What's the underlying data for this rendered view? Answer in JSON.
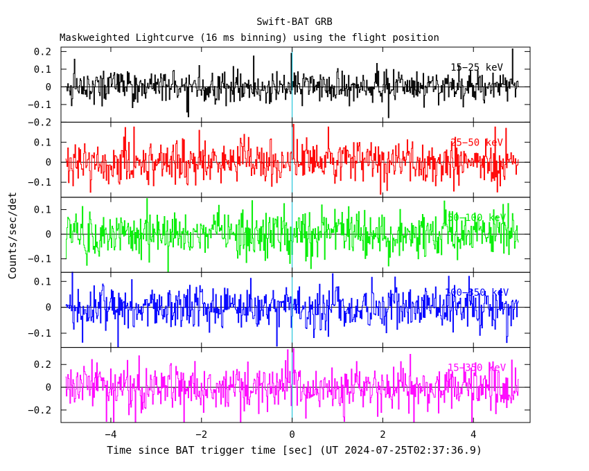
{
  "figure": {
    "title": "Swift-BAT GRB",
    "subtitle": "Maskweighted Lightcurve (16 ms binning) using the flight position",
    "ylabel": "Counts/sec/det",
    "xlabel": "Time since BAT trigger time [sec] (UT 2024-07-25T02:37:36.9)"
  },
  "chart_data": {
    "type": "line",
    "binning_seconds": 0.016,
    "x_range": [
      -5.1,
      5.25
    ],
    "x_ticks": [
      -4,
      -2,
      0,
      2,
      4
    ],
    "x_tick_labels": [
      "−4",
      "−2",
      "0",
      "2",
      "4"
    ],
    "data_x_range": [
      -5.0,
      5.0
    ],
    "trigger_marker_x": 0,
    "trigger_marker_color": "#00bcd4",
    "panels": [
      {
        "name": "15-25 keV",
        "label": "15−25 keV",
        "color": "#000000",
        "ylim": [
          -0.2,
          0.225
        ],
        "yticks": [
          -0.2,
          -0.1,
          0,
          0.1,
          0.2
        ],
        "ytick_labels": [
          "−0.2",
          "−0.1",
          "0",
          "0.1",
          "0.2"
        ],
        "noise_sigma": 0.045,
        "spikes": [
          {
            "t": -0.86,
            "v": 0.175
          },
          {
            "t": -0.02,
            "v": 0.19
          },
          {
            "t": 4.85,
            "v": 0.215
          },
          {
            "t": 2.12,
            "v": -0.175
          },
          {
            "t": -2.3,
            "v": -0.17
          }
        ]
      },
      {
        "name": "25-50 keV",
        "label": "25−50 keV",
        "color": "#ff0000",
        "ylim": [
          -0.175,
          0.2
        ],
        "yticks": [
          -0.1,
          0,
          0.1
        ],
        "ytick_labels": [
          "−0.1",
          "0",
          "0.1"
        ],
        "noise_sigma": 0.055,
        "spikes": [
          {
            "t": -2.05,
            "v": 0.16
          },
          {
            "t": 0.02,
            "v": 0.19
          },
          {
            "t": 4.72,
            "v": 0.17
          },
          {
            "t": 1.95,
            "v": -0.16
          },
          {
            "t": -4.45,
            "v": -0.15
          }
        ]
      },
      {
        "name": "50-100 keV",
        "label": "50−100 keV",
        "color": "#00ee00",
        "ylim": [
          -0.155,
          0.15
        ],
        "yticks": [
          -0.1,
          0,
          0.1
        ],
        "ytick_labels": [
          "−0.1",
          "0",
          "0.1"
        ],
        "noise_sigma": 0.048,
        "spikes": [
          {
            "t": -3.2,
            "v": 0.145
          },
          {
            "t": 3.35,
            "v": 0.135
          },
          {
            "t": -2.75,
            "v": -0.152
          },
          {
            "t": 0.4,
            "v": -0.14
          }
        ]
      },
      {
        "name": "100-350 keV",
        "label": "100−350 keV",
        "color": "#0000ff",
        "ylim": [
          -0.155,
          0.135
        ],
        "yticks": [
          -0.1,
          0,
          0.1
        ],
        "ytick_labels": [
          "−0.1",
          "0",
          "0.1"
        ],
        "noise_sigma": 0.042,
        "spikes": [
          {
            "t": 0.88,
            "v": 0.13
          },
          {
            "t": 3.45,
            "v": 0.12
          },
          {
            "t": -3.85,
            "v": -0.152
          },
          {
            "t": -0.35,
            "v": -0.15
          }
        ]
      },
      {
        "name": "15-350 keV",
        "label": "15−350 keV",
        "color": "#ff00ff",
        "ylim": [
          -0.31,
          0.35
        ],
        "yticks": [
          -0.2,
          0,
          0.2
        ],
        "ytick_labels": [
          "−0.2",
          "0",
          "0.2"
        ],
        "noise_sigma": 0.1,
        "spikes": [
          {
            "t": -0.1,
            "v": 0.33
          },
          {
            "t": 0.03,
            "v": 0.34
          },
          {
            "t": 2.6,
            "v": 0.29
          },
          {
            "t": -4.1,
            "v": -0.3
          },
          {
            "t": 1.15,
            "v": -0.3
          }
        ]
      }
    ]
  }
}
